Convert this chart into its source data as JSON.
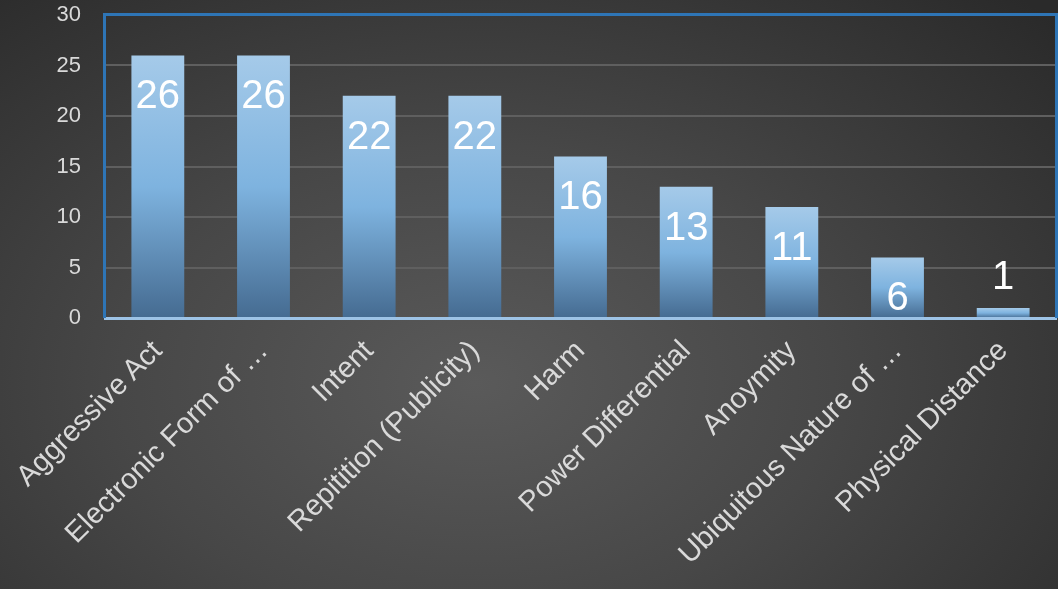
{
  "chart_data": {
    "type": "bar",
    "categories": [
      "Aggressive Act",
      "Electronic Form of …",
      "Intent",
      "Repitition (Publicity)",
      "Harm",
      "Power Differential",
      "Anoymity",
      "Ubiquitous Nature of …",
      "Physical Distance"
    ],
    "values": [
      26,
      26,
      22,
      22,
      16,
      13,
      11,
      6,
      1
    ],
    "color": "#7eb3df",
    "ylim": [
      0,
      30
    ],
    "yticks": [
      0,
      5,
      10,
      15,
      20,
      25,
      30
    ],
    "grid": "y",
    "data_labels": true
  }
}
